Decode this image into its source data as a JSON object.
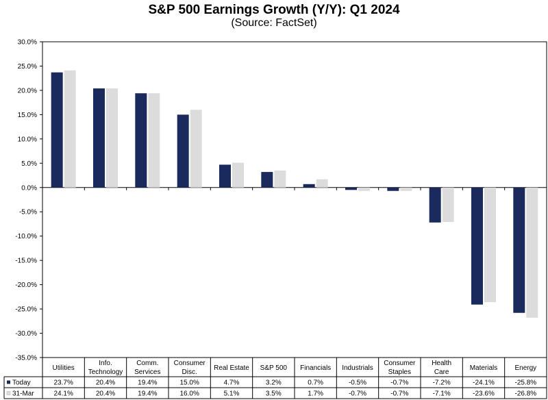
{
  "chart_data": {
    "type": "bar",
    "title": "S&P 500 Earnings Growth (Y/Y): Q1 2024",
    "subtitle": "(Source: FactSet)",
    "xlabel": "",
    "ylabel": "",
    "ylim": [
      -35,
      30
    ],
    "ytick_step": 5,
    "ytick_labels": [
      "30.0%",
      "25.0%",
      "20.0%",
      "15.0%",
      "10.0%",
      "5.0%",
      "0.0%",
      "-5.0%",
      "-10.0%",
      "-15.0%",
      "-20.0%",
      "-25.0%",
      "-30.0%",
      "-35.0%"
    ],
    "grid": false,
    "legend": "data-table",
    "categories": [
      [
        "Utilities"
      ],
      [
        "Info.",
        "Technology"
      ],
      [
        "Comm.",
        "Services"
      ],
      [
        "Consumer",
        "Disc."
      ],
      [
        "Real Estate"
      ],
      [
        "S&P 500"
      ],
      [
        "Financials"
      ],
      [
        "Industrials"
      ],
      [
        "Consumer",
        "Staples"
      ],
      [
        "Health",
        "Care"
      ],
      [
        "Materials"
      ],
      [
        "Energy"
      ]
    ],
    "series": [
      {
        "name": "Today",
        "color": "#1b2a5c",
        "values": [
          23.7,
          20.4,
          19.4,
          15.0,
          4.7,
          3.2,
          0.7,
          -0.5,
          -0.7,
          -7.2,
          -24.1,
          -25.8
        ],
        "labels": [
          "23.7%",
          "20.4%",
          "19.4%",
          "15.0%",
          "4.7%",
          "3.2%",
          "0.7%",
          "-0.5%",
          "-0.7%",
          "-7.2%",
          "-24.1%",
          "-25.8%"
        ]
      },
      {
        "name": "31-Mar",
        "color": "#dcdcdc",
        "values": [
          24.1,
          20.4,
          19.4,
          16.0,
          5.1,
          3.5,
          1.7,
          -0.7,
          -0.7,
          -7.1,
          -23.6,
          -26.8
        ],
        "labels": [
          "24.1%",
          "20.4%",
          "19.4%",
          "16.0%",
          "5.1%",
          "3.5%",
          "1.7%",
          "-0.7%",
          "-0.7%",
          "-7.1%",
          "-23.6%",
          "-26.8%"
        ]
      }
    ]
  }
}
